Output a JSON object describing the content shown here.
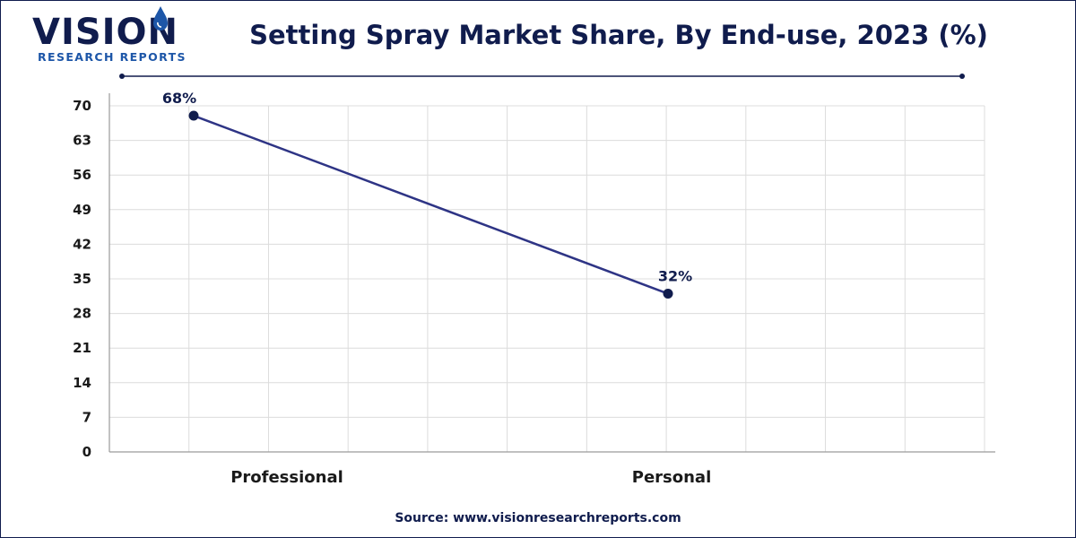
{
  "brand": {
    "name": "VISION",
    "subtitle": "RESEARCH REPORTS",
    "primary_color": "#101c4d",
    "accent_color": "#1d56a8"
  },
  "header": {
    "title": "Setting Spray Market Share, By End-use, 2023 (%)"
  },
  "footer": {
    "source": "Source: www.visionresearchreports.com"
  },
  "chart_data": {
    "type": "line",
    "title": "Setting Spray Market Share, By End-use, 2023 (%)",
    "categories": [
      "Professional",
      "Personal"
    ],
    "series": [
      {
        "values": [
          68,
          32
        ],
        "labels": [
          "68%",
          "32%"
        ],
        "color": "#2e3485"
      }
    ],
    "xlabel": "",
    "ylabel": "",
    "ylim": [
      0,
      70
    ],
    "yticks": [
      0,
      7,
      14,
      21,
      28,
      35,
      42,
      49,
      56,
      63,
      70
    ],
    "grid": true,
    "legend": "none"
  }
}
